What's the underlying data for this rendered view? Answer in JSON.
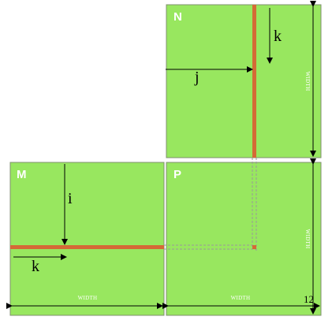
{
  "matrices": {
    "n": {
      "label": "N"
    },
    "m": {
      "label": "M"
    },
    "p": {
      "label": "P"
    }
  },
  "indices": {
    "n_k": "k",
    "n_j": "j",
    "m_i": "i",
    "m_k": "k"
  },
  "dimensions": {
    "n_height": "WIDTH",
    "p_height": "WIDTH",
    "m_width": "WIDTH",
    "p_width": "WIDTH"
  },
  "corner_number": "12",
  "colors": {
    "matrix_fill": "#98e75f",
    "matrix_border": "#7f8f6f",
    "highlight": "#d46a36",
    "arrow": "#000000",
    "dashed": "#9a9a9a"
  }
}
